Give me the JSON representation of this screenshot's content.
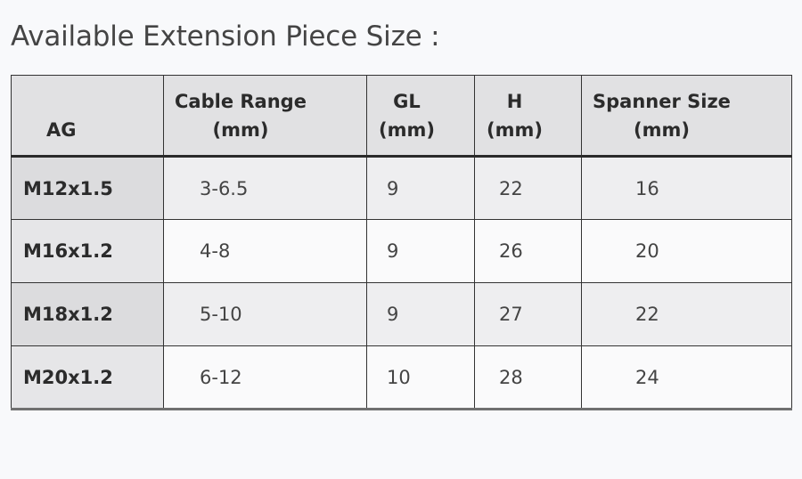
{
  "page": {
    "title": "Available Extension Piece Size :"
  },
  "table": {
    "headers": {
      "ag": [
        "AG"
      ],
      "cable_range": [
        "Cable Range",
        "(mm)"
      ],
      "gl": [
        "GL",
        "(mm)"
      ],
      "h": [
        "H",
        "(mm)"
      ],
      "spanner_size": [
        "Spanner Size",
        "(mm)"
      ]
    },
    "rows": [
      {
        "ag": "M12x1.5",
        "cable_range": "3-6.5",
        "gl": "9",
        "h": "22",
        "spanner_size": "16"
      },
      {
        "ag": "M16x1.2",
        "cable_range": "4-8",
        "gl": "9",
        "h": "26",
        "spanner_size": "20"
      },
      {
        "ag": "M18x1.2",
        "cable_range": "5-10",
        "gl": "9",
        "h": "27",
        "spanner_size": "22"
      },
      {
        "ag": "M20x1.2",
        "cable_range": "6-12",
        "gl": "10",
        "h": "28",
        "spanner_size": "24"
      }
    ]
  }
}
